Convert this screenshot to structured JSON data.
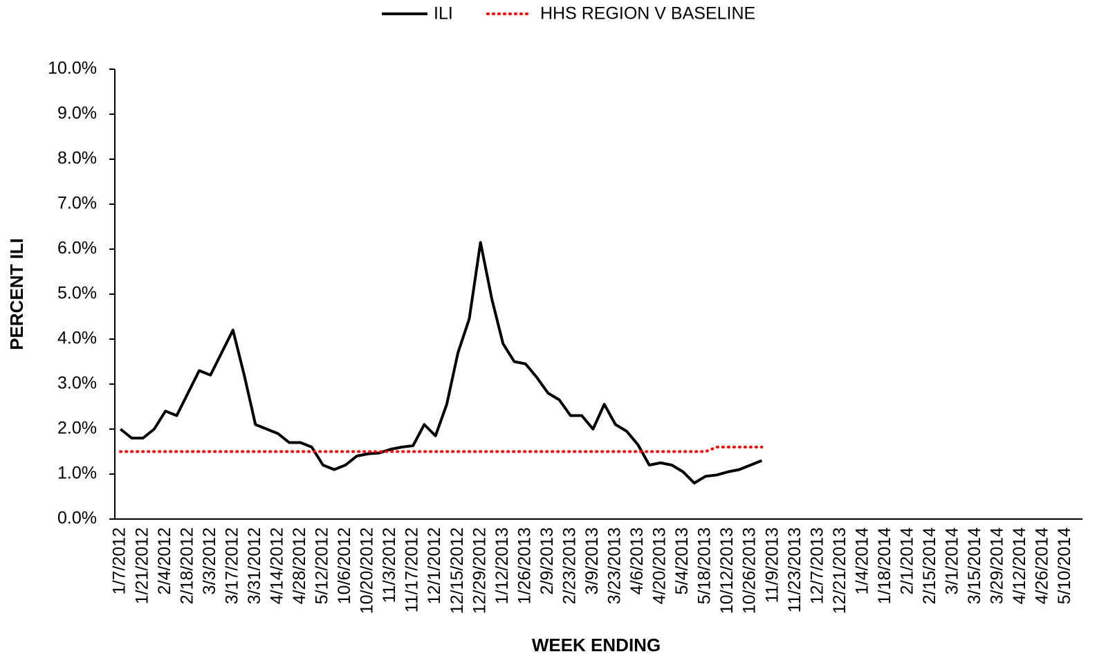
{
  "chart_data": {
    "type": "line",
    "xlabel": "WEEK ENDING",
    "ylabel": "PERCENT ILI",
    "categories": [
      "1/7/2012",
      null,
      "1/21/2012",
      null,
      "2/4/2012",
      null,
      "2/18/2012",
      null,
      "3/3/2012",
      null,
      "3/17/2012",
      null,
      "3/31/2012",
      null,
      "4/14/2012",
      null,
      "4/28/2012",
      null,
      "5/12/2012",
      null,
      "10/6/2012",
      null,
      "10/20/2012",
      null,
      "11/3/2012",
      null,
      "11/17/2012",
      null,
      "12/1/2012",
      null,
      "12/15/2012",
      null,
      "12/29/2012",
      null,
      "1/12/2013",
      null,
      "1/26/2013",
      null,
      "2/9/2013",
      null,
      "2/23/2013",
      null,
      "3/9/2013",
      null,
      "3/23/2013",
      null,
      "4/6/2013",
      null,
      "4/20/2013",
      null,
      "5/4/2013",
      null,
      "5/18/2013",
      null,
      "10/12/2013",
      null,
      "10/26/2013",
      null,
      "11/9/2013",
      null,
      "11/23/2013",
      null,
      "12/7/2013",
      null,
      "12/21/2013",
      null,
      "1/4/2014",
      null,
      "1/18/2014",
      null,
      "2/1/2014",
      null,
      "2/15/2014",
      null,
      "3/1/2014",
      null,
      "3/15/2014",
      null,
      "3/29/2014",
      null,
      "4/12/2014",
      null,
      "4/26/2014",
      null,
      "5/10/2014",
      null
    ],
    "series": [
      {
        "name": "ILI",
        "color": "#000000",
        "style": "solid",
        "values": [
          2.0,
          1.8,
          1.8,
          2.0,
          2.4,
          2.3,
          2.8,
          3.3,
          3.2,
          3.7,
          4.2,
          3.2,
          2.1,
          2.0,
          1.9,
          1.7,
          1.7,
          1.6,
          1.2,
          1.1,
          1.2,
          1.4,
          1.45,
          1.47,
          1.55,
          1.6,
          1.63,
          2.1,
          1.85,
          2.55,
          3.7,
          4.45,
          6.15,
          4.9,
          3.9,
          3.5,
          3.45,
          3.15,
          2.8,
          2.65,
          2.3,
          2.3,
          2.0,
          2.55,
          2.1,
          1.95,
          1.65,
          1.2,
          1.25,
          1.2,
          1.05,
          0.8,
          0.95,
          0.98,
          1.05,
          1.1,
          1.2,
          1.3,
          null,
          null,
          null,
          null,
          null,
          null,
          null,
          null,
          null,
          null,
          null,
          null,
          null,
          null,
          null,
          null,
          null,
          null,
          null,
          null,
          null,
          null,
          null,
          null,
          null,
          null,
          null,
          null
        ]
      },
      {
        "name": "HHS REGION V BASELINE",
        "color": "#ff0000",
        "style": "dotted",
        "values": [
          1.5,
          1.5,
          1.5,
          1.5,
          1.5,
          1.5,
          1.5,
          1.5,
          1.5,
          1.5,
          1.5,
          1.5,
          1.5,
          1.5,
          1.5,
          1.5,
          1.5,
          1.5,
          1.5,
          1.5,
          1.5,
          1.5,
          1.5,
          1.5,
          1.5,
          1.5,
          1.5,
          1.5,
          1.5,
          1.5,
          1.5,
          1.5,
          1.5,
          1.5,
          1.5,
          1.5,
          1.5,
          1.5,
          1.5,
          1.5,
          1.5,
          1.5,
          1.5,
          1.5,
          1.5,
          1.5,
          1.5,
          1.5,
          1.5,
          1.5,
          1.5,
          1.5,
          1.5,
          1.6,
          1.6,
          1.6,
          1.6,
          1.6,
          null,
          null,
          null,
          null,
          null,
          null,
          null,
          null,
          null,
          null,
          null,
          null,
          null,
          null,
          null,
          null,
          null,
          null,
          null,
          null,
          null,
          null,
          null,
          null,
          null,
          null,
          null,
          null
        ]
      }
    ],
    "ylim": [
      0,
      10
    ],
    "yticks": [
      {
        "value": 0,
        "label": "0.0%"
      },
      {
        "value": 1,
        "label": "1.0%"
      },
      {
        "value": 2,
        "label": "2.0%"
      },
      {
        "value": 3,
        "label": "3.0%"
      },
      {
        "value": 4,
        "label": "4.0%"
      },
      {
        "value": 5,
        "label": "5.0%"
      },
      {
        "value": 6,
        "label": "6.0%"
      },
      {
        "value": 7,
        "label": "7.0%"
      },
      {
        "value": 8,
        "label": "8.0%"
      },
      {
        "value": 9,
        "label": "9.0%"
      },
      {
        "value": 10,
        "label": "10.0%"
      }
    ],
    "grid": false,
    "legend": "top"
  }
}
